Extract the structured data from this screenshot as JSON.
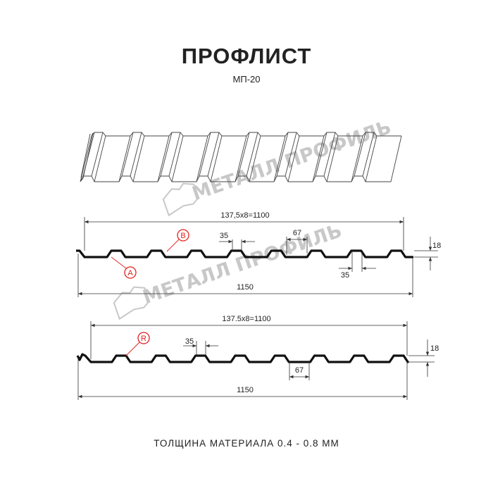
{
  "header": {
    "title": "ПРОФЛИСТ",
    "subtitle": "МП-20"
  },
  "watermark": {
    "text": "МЕТАЛЛ ПРОФИЛЬ"
  },
  "profile_1": {
    "pitch_label": "137,5x8=1100",
    "width_label": "1150",
    "crest_top_label": "35",
    "trough_label": "67",
    "crest_bottom_label": "35",
    "height_label": "18",
    "marker_a": "A",
    "marker_b": "B"
  },
  "profile_2": {
    "pitch_label": "137.5x8=1100",
    "width_label": "1150",
    "crest_label": "35",
    "trough_label": "67",
    "height_label": "18",
    "marker_r": "R"
  },
  "footer": {
    "thickness": "ТОЛЩИНА МАТЕРИАЛА 0.4 - 0.8 ММ"
  },
  "colors": {
    "marker": "#e3201b",
    "line": "#111111",
    "watermark": "#c8c8c8"
  }
}
